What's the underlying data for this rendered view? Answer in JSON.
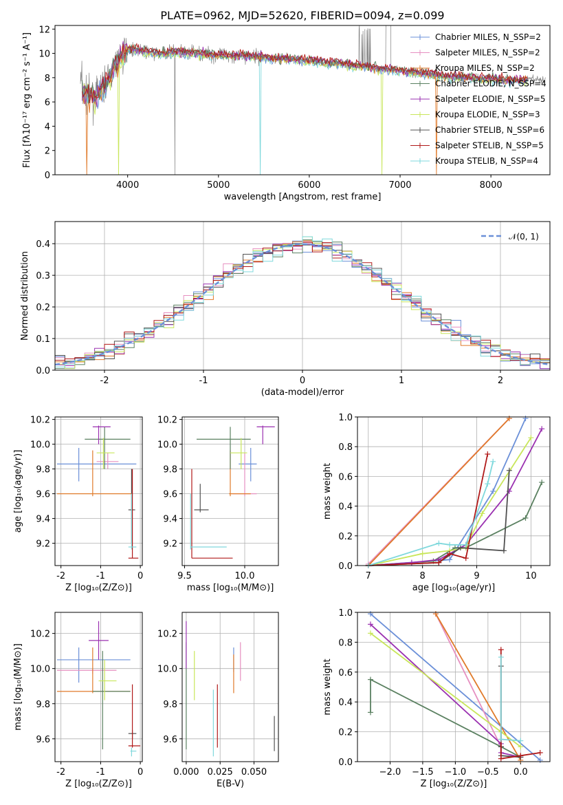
{
  "colors": {
    "c1": "#6a8fd8",
    "c2": "#e68fc0",
    "c3": "#e07a2a",
    "c4": "#5a8060",
    "c5": "#9a30b0",
    "c6": "#c8e65a",
    "c7": "#505050",
    "c8": "#b01818",
    "c9": "#7fd8dc"
  },
  "chart_data": [
    {
      "type": "line",
      "title": "PLATE=0962, MJD=52620, FIBERID=0094, z=0.099",
      "xlabel": "wavelength [Angstrom, rest frame]",
      "ylabel": "Flux [fλ10⁻¹⁷ erg cm⁻² s⁻¹ A⁻¹]",
      "xlim": [
        3200,
        8650
      ],
      "ylim": [
        0,
        12.3
      ],
      "xticks": [
        4000,
        5000,
        6000,
        7000,
        8000
      ],
      "yticks": [
        0,
        2,
        4,
        6,
        8,
        10,
        12
      ],
      "grid": false,
      "legend_position": "right",
      "series": [
        {
          "name": "Chabrier MILES, N_SSP=2",
          "color": "c1"
        },
        {
          "name": "Salpeter MILES, N_SSP=2",
          "color": "c2"
        },
        {
          "name": "Kroupa MILES, N_SSP=2",
          "color": "c3"
        },
        {
          "name": "Chabrier ELODIE, N_SSP=4",
          "color": "c4"
        },
        {
          "name": "Salpeter ELODIE, N_SSP=5",
          "color": "c5"
        },
        {
          "name": "Kroupa ELODIE, N_SSP=3",
          "color": "c6"
        },
        {
          "name": "Chabrier STELIB, N_SSP=6",
          "color": "c7"
        },
        {
          "name": "Salpeter STELIB, N_SSP=5",
          "color": "c8"
        },
        {
          "name": "Kroupa STELIB, N_SSP=4",
          "color": "c9"
        }
      ],
      "continuum": {
        "x": [
          3500,
          3650,
          3800,
          3900,
          4000,
          4100,
          4300,
          4500,
          4800,
          5000,
          5300,
          5600,
          6000,
          6400,
          6800,
          7200,
          7500,
          7800,
          8200,
          8600
        ],
        "y": [
          6.8,
          6.4,
          8.0,
          9.5,
          10.4,
          10.3,
          10.0,
          10.1,
          10.0,
          9.8,
          9.8,
          9.6,
          9.4,
          9.1,
          8.7,
          8.4,
          8.1,
          8.0,
          7.8,
          7.8
        ]
      }
    },
    {
      "type": "line",
      "xlabel": "(data-model)/error",
      "ylabel": "Normed distribution",
      "xlim": [
        -2.5,
        2.5
      ],
      "ylim": [
        0,
        0.47
      ],
      "xticks": [
        -2,
        -1,
        0,
        1,
        2
      ],
      "yticks": [
        0.0,
        0.1,
        0.2,
        0.3,
        0.4
      ],
      "grid": true,
      "legend": [
        {
          "name": "𝒩(0, 1)",
          "color": "c1"
        }
      ],
      "legend_position": "top-right",
      "hist_bins": 50
    },
    {
      "type": "scatter",
      "xlabel": "Z [log₁₀(Z/Z⊙)]",
      "ylabel": "age  [log₁₀(age/yr)]",
      "xlim": [
        -2.15,
        0.05
      ],
      "ylim": [
        9.02,
        10.22
      ],
      "xticks": [
        -2,
        -1,
        0
      ],
      "yticks": [
        9.2,
        9.4,
        9.6,
        9.8,
        10.0,
        10.2
      ],
      "points": [
        {
          "c": "c1",
          "x": -1.55,
          "y": 9.84,
          "xe": [
            -2.1,
            -0.1
          ],
          "ye": [
            9.7,
            9.97
          ]
        },
        {
          "c": "c2",
          "x": -0.82,
          "y": 9.86,
          "xe": [
            -1.1,
            -0.55
          ],
          "ye": [
            9.8,
            9.93
          ]
        },
        {
          "c": "c3",
          "x": -1.2,
          "y": 9.6,
          "xe": [
            -2.1,
            -0.2
          ],
          "ye": [
            9.58,
            9.95
          ]
        },
        {
          "c": "c4",
          "x": -0.9,
          "y": 10.04,
          "xe": [
            -1.4,
            -0.25
          ],
          "ye": [
            9.8,
            10.14
          ]
        },
        {
          "c": "c5",
          "x": -1.05,
          "y": 10.14,
          "xe": [
            -1.2,
            -0.75
          ],
          "ye": [
            10.0,
            10.15
          ]
        },
        {
          "c": "c6",
          "x": -0.93,
          "y": 9.93,
          "xe": [
            -1.1,
            -0.65
          ],
          "ye": [
            9.8,
            10.05
          ]
        },
        {
          "c": "c7",
          "x": -0.22,
          "y": 9.47,
          "xe": [
            -0.3,
            -0.13
          ],
          "ye": [
            9.2,
            9.8
          ]
        },
        {
          "c": "c8",
          "x": -0.2,
          "y": 9.08,
          "xe": [
            -0.3,
            -0.05
          ],
          "ye": [
            9.08,
            9.8
          ]
        },
        {
          "c": "c9",
          "x": -0.22,
          "y": 9.17,
          "xe": [
            -0.3,
            -0.1
          ],
          "ye": [
            9.15,
            9.6
          ]
        }
      ]
    },
    {
      "type": "scatter",
      "xlabel": "mass [log₁₀(M/M⊙)]",
      "xlim": [
        9.48,
        10.28
      ],
      "ylim": [
        9.02,
        10.22
      ],
      "xticks": [
        9.5,
        10.0
      ],
      "yticks": [
        9.2,
        9.4,
        9.6,
        9.8,
        10.0,
        10.2
      ],
      "points": [
        {
          "c": "c1",
          "x": 10.05,
          "y": 9.84,
          "xe": [
            9.95,
            10.1
          ],
          "ye": [
            9.7,
            9.97
          ]
        },
        {
          "c": "c2",
          "x": 10.0,
          "y": 9.6,
          "xe": [
            9.9,
            10.1
          ],
          "ye": [
            9.58,
            9.93
          ]
        },
        {
          "c": "c3",
          "x": 9.88,
          "y": 9.6,
          "xe": [
            9.87,
            10.05
          ],
          "ye": [
            9.58,
            9.95
          ]
        },
        {
          "c": "c4",
          "x": 9.88,
          "y": 10.04,
          "xe": [
            9.6,
            10.05
          ],
          "ye": [
            9.8,
            10.14
          ]
        },
        {
          "c": "c5",
          "x": 10.15,
          "y": 10.14,
          "xe": [
            10.1,
            10.25
          ],
          "ye": [
            10.0,
            10.15
          ]
        },
        {
          "c": "c6",
          "x": 9.97,
          "y": 9.93,
          "xe": [
            9.88,
            10.02
          ],
          "ye": [
            9.8,
            10.05
          ]
        },
        {
          "c": "c7",
          "x": 9.63,
          "y": 9.47,
          "xe": [
            9.58,
            9.7
          ],
          "ye": [
            9.45,
            9.68
          ]
        },
        {
          "c": "c8",
          "x": 9.56,
          "y": 9.08,
          "xe": [
            9.56,
            9.9
          ],
          "ye": [
            9.08,
            9.8
          ]
        },
        {
          "c": "c9",
          "x": 9.55,
          "y": 9.17,
          "xe": [
            9.55,
            9.85
          ],
          "ye": [
            9.15,
            9.6
          ]
        }
      ]
    },
    {
      "type": "line",
      "xlabel": "age  [log₁₀(age/yr)]",
      "ylabel": "mass weight",
      "xlim": [
        6.8,
        10.35
      ],
      "ylim": [
        0,
        1
      ],
      "xticks": [
        7,
        8,
        9,
        10
      ],
      "yticks": [
        0.0,
        0.2,
        0.4,
        0.6,
        0.8,
        1.0
      ],
      "grid": true,
      "series": [
        {
          "c": "c1",
          "x": [
            7.0,
            8.5,
            9.3,
            9.9
          ],
          "y": [
            0.0,
            0.04,
            0.5,
            0.99
          ]
        },
        {
          "c": "c2",
          "x": [
            7.0,
            9.6
          ],
          "y": [
            0.01,
            0.99
          ]
        },
        {
          "c": "c3",
          "x": [
            7.0,
            9.6
          ],
          "y": [
            0.0,
            0.99
          ]
        },
        {
          "c": "c4",
          "x": [
            7.0,
            8.2,
            8.6,
            8.8,
            9.9,
            10.2
          ],
          "y": [
            0.0,
            0.03,
            0.12,
            0.12,
            0.32,
            0.56
          ]
        },
        {
          "c": "c5",
          "x": [
            7.0,
            7.8,
            8.3,
            8.8,
            9.6,
            10.2
          ],
          "y": [
            0.0,
            0.02,
            0.04,
            0.14,
            0.5,
            0.92
          ]
        },
        {
          "c": "c6",
          "x": [
            7.0,
            8.0,
            8.5,
            8.8,
            9.1,
            10.0
          ],
          "y": [
            0.0,
            0.08,
            0.1,
            0.12,
            0.35,
            0.86
          ]
        },
        {
          "c": "c7",
          "x": [
            7.0,
            8.3,
            8.7,
            9.5,
            9.6
          ],
          "y": [
            0.0,
            0.02,
            0.12,
            0.1,
            0.64
          ]
        },
        {
          "c": "c8",
          "x": [
            7.0,
            8.3,
            8.5,
            8.8,
            9.2
          ],
          "y": [
            0.0,
            0.02,
            0.08,
            0.05,
            0.75
          ]
        },
        {
          "c": "c9",
          "x": [
            7.0,
            8.3,
            8.5,
            8.8,
            9.2,
            9.3
          ],
          "y": [
            0.0,
            0.15,
            0.14,
            0.14,
            0.55,
            0.7
          ]
        }
      ]
    },
    {
      "type": "scatter",
      "xlabel": "Z [log₁₀(Z/Z⊙)]",
      "ylabel": "mass [log₁₀(M/M⊙)]",
      "xlim": [
        -2.15,
        0.05
      ],
      "ylim": [
        9.47,
        10.32
      ],
      "xticks": [
        -2,
        -1,
        0
      ],
      "yticks": [
        9.6,
        9.8,
        10.0,
        10.2
      ],
      "points": [
        {
          "c": "c1",
          "x": -1.55,
          "y": 10.05,
          "xe": [
            -2.1,
            -0.25
          ],
          "ye": [
            9.92,
            10.12
          ]
        },
        {
          "c": "c2",
          "x": -1.2,
          "y": 9.99,
          "xe": [
            -2.1,
            -0.6
          ],
          "ye": [
            9.97,
            10.0
          ]
        },
        {
          "c": "c3",
          "x": -1.2,
          "y": 9.87,
          "xe": [
            -2.1,
            -0.25
          ],
          "ye": [
            9.86,
            10.12
          ]
        },
        {
          "c": "c4",
          "x": -0.95,
          "y": 9.87,
          "xe": [
            -1.2,
            -0.25
          ],
          "ye": [
            9.54,
            10.1
          ]
        },
        {
          "c": "c5",
          "x": -1.05,
          "y": 10.16,
          "xe": [
            -1.3,
            -0.8
          ],
          "ye": [
            10.05,
            10.27
          ]
        },
        {
          "c": "c6",
          "x": -0.9,
          "y": 9.93,
          "xe": [
            -1.05,
            -0.6
          ],
          "ye": [
            9.82,
            10.05
          ]
        },
        {
          "c": "c7",
          "x": -0.2,
          "y": 9.63,
          "xe": [
            -0.3,
            -0.1
          ],
          "ye": [
            9.6,
            9.65
          ]
        },
        {
          "c": "c8",
          "x": -0.2,
          "y": 9.56,
          "xe": [
            -0.3,
            0.0
          ],
          "ye": [
            9.55,
            9.91
          ]
        },
        {
          "c": "c9",
          "x": -0.22,
          "y": 9.53,
          "xe": [
            -0.25,
            -0.1
          ],
          "ye": [
            9.5,
            9.55
          ]
        }
      ]
    },
    {
      "type": "scatter",
      "xlabel": "E(B-V)",
      "xlim": [
        -0.003,
        0.068
      ],
      "ylim": [
        9.47,
        10.32
      ],
      "xticks": [
        0.0,
        0.025,
        0.05
      ],
      "xticklabels": [
        "0.000",
        "0.025",
        "0.050"
      ],
      "yticks": [
        9.6,
        9.8,
        10.0,
        10.2
      ],
      "points": [
        {
          "c": "c1",
          "x": 0.035,
          "y": 10.05,
          "ye": [
            9.98,
            10.12
          ]
        },
        {
          "c": "c2",
          "x": 0.04,
          "y": 10.0,
          "ye": [
            9.93,
            10.15
          ]
        },
        {
          "c": "c3",
          "x": 0.035,
          "y": 9.87,
          "ye": [
            9.86,
            10.08
          ]
        },
        {
          "c": "c4",
          "x": 0.0,
          "y": 9.87,
          "ye": [
            9.54,
            10.15
          ]
        },
        {
          "c": "c5",
          "x": 0.0,
          "y": 10.16,
          "ye": [
            10.0,
            10.27
          ]
        },
        {
          "c": "c6",
          "x": 0.006,
          "y": 9.93,
          "ye": [
            9.82,
            10.1
          ]
        },
        {
          "c": "c7",
          "x": 0.065,
          "y": 9.63,
          "ye": [
            9.53,
            9.73
          ]
        },
        {
          "c": "c8",
          "x": 0.023,
          "y": 9.56,
          "ye": [
            9.55,
            9.91
          ]
        },
        {
          "c": "c9",
          "x": 0.02,
          "y": 9.55,
          "ye": [
            9.5,
            9.88
          ]
        }
      ]
    },
    {
      "type": "line",
      "xlabel": "Z [log₁₀(Z/Z⊙)]",
      "ylabel": "mass weight",
      "xlim": [
        -2.5,
        0.45
      ],
      "ylim": [
        0,
        1
      ],
      "xticks": [
        -2.0,
        -1.5,
        -1.0,
        -0.5,
        0.0
      ],
      "xticklabels": [
        "−2.0",
        "−1.5",
        "−1.0",
        "−0.5",
        "0.0"
      ],
      "yticks": [
        0.0,
        0.2,
        0.4,
        0.6,
        0.8,
        1.0
      ],
      "grid": true,
      "series": [
        {
          "c": "c1",
          "x": [
            -2.3,
            0.3
          ],
          "y": [
            0.99,
            0.01
          ]
        },
        {
          "c": "c2",
          "x": [
            -1.3,
            -0.3
          ],
          "y": [
            0.99,
            0.1
          ]
        },
        {
          "c": "c3",
          "x": [
            -1.3,
            0.0
          ],
          "y": [
            0.99,
            0.01
          ]
        },
        {
          "c": "c4",
          "x": [
            -2.3,
            -2.3,
            -0.3,
            0.0
          ],
          "y": [
            0.33,
            0.55,
            0.1,
            0.03
          ]
        },
        {
          "c": "c5",
          "x": [
            -2.3,
            -0.3,
            -0.3,
            0.0
          ],
          "y": [
            0.92,
            0.12,
            0.06,
            0.03
          ]
        },
        {
          "c": "c6",
          "x": [
            -2.3,
            -0.3,
            0.0
          ],
          "y": [
            0.86,
            0.2,
            0.1
          ]
        },
        {
          "c": "c7",
          "x": [
            -0.3,
            -0.3,
            -0.3,
            0.0
          ],
          "y": [
            0.64,
            0.1,
            0.04,
            0.03
          ]
        },
        {
          "c": "c8",
          "x": [
            -0.3,
            -0.3,
            0.0,
            0.3
          ],
          "y": [
            0.75,
            0.02,
            0.04,
            0.06
          ]
        },
        {
          "c": "c9",
          "x": [
            -0.3,
            -0.3,
            0.0
          ],
          "y": [
            0.7,
            0.15,
            0.14
          ]
        }
      ]
    }
  ]
}
